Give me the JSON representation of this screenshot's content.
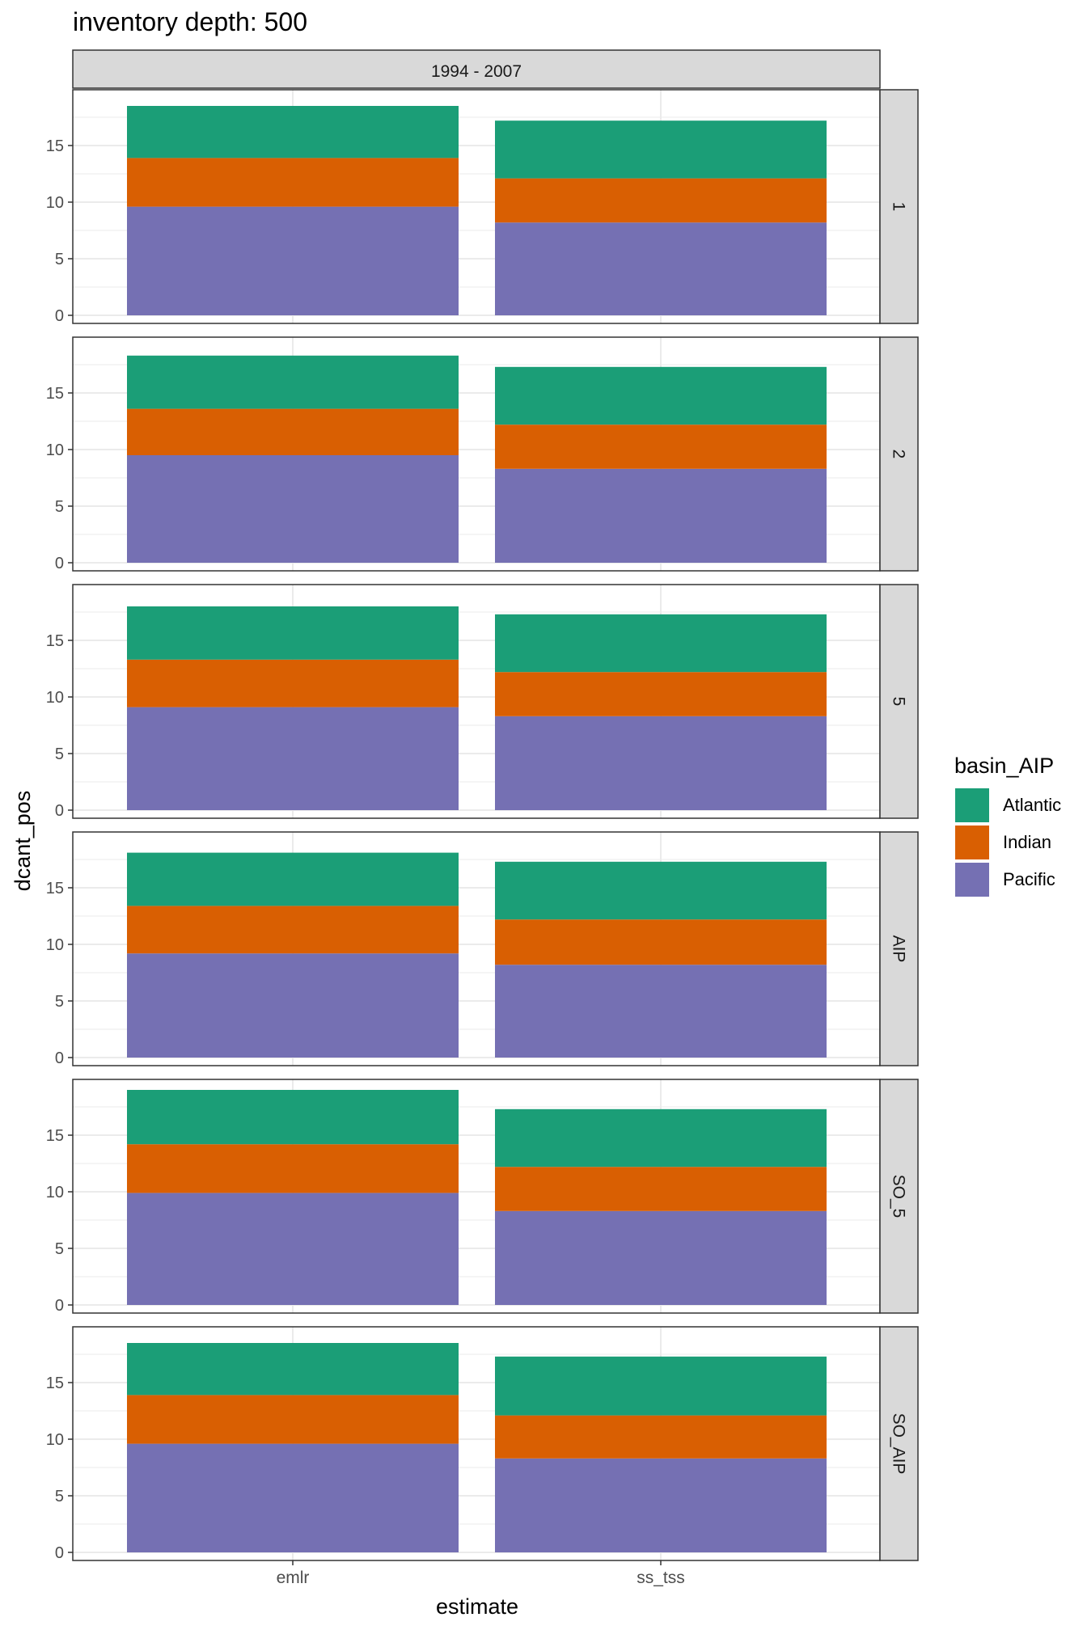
{
  "chart_data": {
    "type": "bar",
    "stacked": true,
    "title": "inventory depth: 500",
    "xlabel": "estimate",
    "ylabel": "dcant_pos",
    "column_strip": "1994 - 2007",
    "categories": [
      "emlr",
      "ss_tss"
    ],
    "ylim": [
      0,
      19.5
    ],
    "yticks": [
      0,
      5,
      10,
      15
    ],
    "grid": true,
    "legend": {
      "title": "basin_AIP",
      "position": "right",
      "entries": [
        "Atlantic",
        "Indian",
        "Pacific"
      ]
    },
    "colors": {
      "Atlantic": "#1b9e77",
      "Indian": "#d95f02",
      "Pacific": "#7570b3"
    },
    "panels": [
      {
        "label": "1",
        "series": [
          {
            "name": "Pacific",
            "values": [
              9.6,
              8.2
            ]
          },
          {
            "name": "Indian",
            "values": [
              4.3,
              3.9
            ]
          },
          {
            "name": "Atlantic",
            "values": [
              4.6,
              5.1
            ]
          }
        ]
      },
      {
        "label": "2",
        "series": [
          {
            "name": "Pacific",
            "values": [
              9.5,
              8.3
            ]
          },
          {
            "name": "Indian",
            "values": [
              4.1,
              3.9
            ]
          },
          {
            "name": "Atlantic",
            "values": [
              4.7,
              5.1
            ]
          }
        ]
      },
      {
        "label": "5",
        "series": [
          {
            "name": "Pacific",
            "values": [
              9.1,
              8.3
            ]
          },
          {
            "name": "Indian",
            "values": [
              4.2,
              3.9
            ]
          },
          {
            "name": "Atlantic",
            "values": [
              4.7,
              5.1
            ]
          }
        ]
      },
      {
        "label": "AIP",
        "series": [
          {
            "name": "Pacific",
            "values": [
              9.2,
              8.2
            ]
          },
          {
            "name": "Indian",
            "values": [
              4.2,
              4.0
            ]
          },
          {
            "name": "Atlantic",
            "values": [
              4.7,
              5.1
            ]
          }
        ]
      },
      {
        "label": "SO_5",
        "series": [
          {
            "name": "Pacific",
            "values": [
              9.9,
              8.3
            ]
          },
          {
            "name": "Indian",
            "values": [
              4.3,
              3.9
            ]
          },
          {
            "name": "Atlantic",
            "values": [
              4.8,
              5.1
            ]
          }
        ]
      },
      {
        "label": "SO_AIP",
        "series": [
          {
            "name": "Pacific",
            "values": [
              9.6,
              8.3
            ]
          },
          {
            "name": "Indian",
            "values": [
              4.3,
              3.8
            ]
          },
          {
            "name": "Atlantic",
            "values": [
              4.6,
              5.2
            ]
          }
        ]
      }
    ]
  }
}
